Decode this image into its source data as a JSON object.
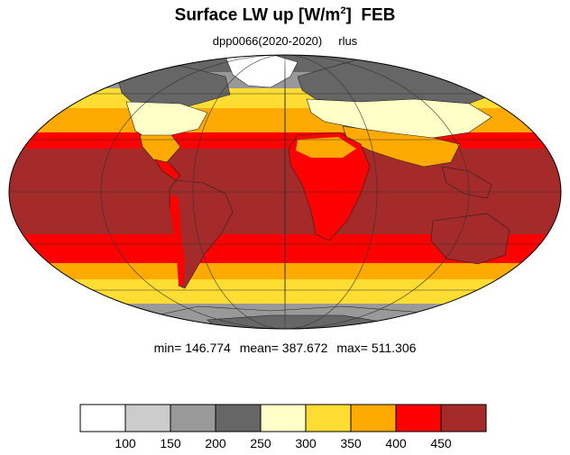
{
  "title": {
    "main": "Surface LW up [W/m",
    "sup": "2",
    "close": "]",
    "month": "FEB"
  },
  "subtitle": {
    "experiment": "dpp0066(2020-2020)",
    "variable": "rlus"
  },
  "stats": {
    "min": "min= 146.774",
    "mean": "mean= 387.672",
    "max": "max= 511.306"
  },
  "colorbar": {
    "colors": [
      "#ffffff",
      "#cccccc",
      "#999999",
      "#666666",
      "#ffffc8",
      "#ffdd33",
      "#ffaa00",
      "#ff0000",
      "#a52a2a"
    ],
    "labels": [
      "100",
      "150",
      "200",
      "250",
      "300",
      "350",
      "400",
      "450"
    ]
  },
  "map": {
    "projection": "mollweide",
    "ocean_band_colors": [
      "#666666",
      "#999999",
      "#ffdd33",
      "#ffaa00",
      "#ff0000",
      "#a52a2a",
      "#ff0000",
      "#ffaa00",
      "#ffdd33",
      "#999999"
    ]
  }
}
